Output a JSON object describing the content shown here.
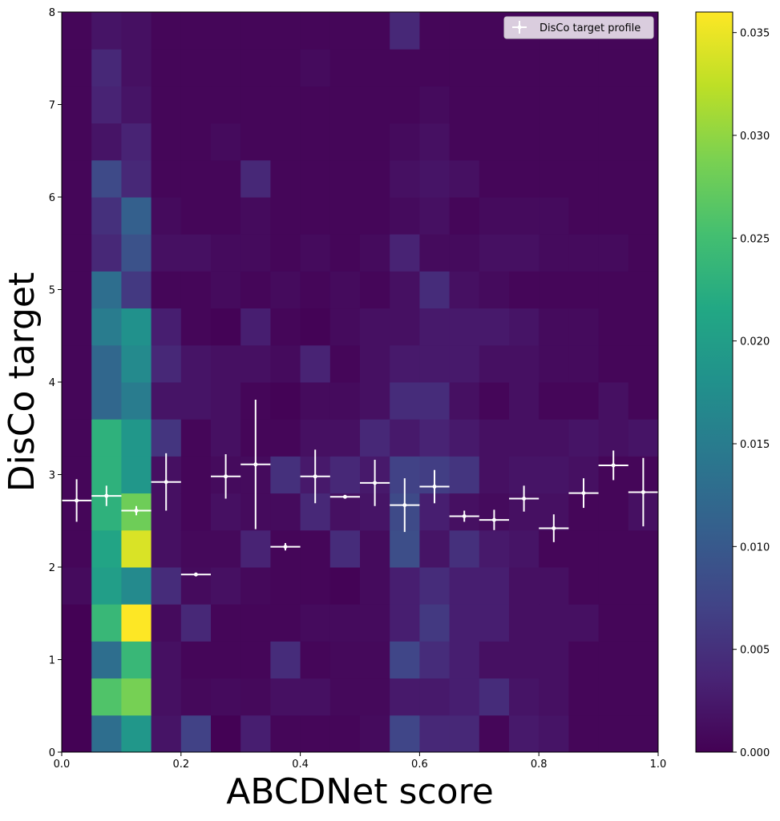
{
  "chart_data": {
    "type": "heatmap",
    "title": "",
    "xlabel": "ABCDNet score",
    "ylabel": "DisCo target",
    "xlim": [
      0,
      1
    ],
    "ylim": [
      0,
      8
    ],
    "x_bins": [
      0.0,
      0.05,
      0.1,
      0.15,
      0.2,
      0.25,
      0.3,
      0.35,
      0.4,
      0.45,
      0.5,
      0.55,
      0.6,
      0.65,
      0.7,
      0.75,
      0.8,
      0.85,
      0.9,
      0.95,
      1.0
    ],
    "y_bins": [
      0.0,
      0.4,
      0.8,
      1.2,
      1.6,
      2.0,
      2.4,
      2.8,
      3.2,
      3.6,
      4.0,
      4.4,
      4.8,
      5.2,
      5.6,
      6.0,
      6.4,
      6.8,
      7.2,
      7.6,
      8.0
    ],
    "x_ticks": [
      "0.0",
      "0.2",
      "0.4",
      "0.6",
      "0.8",
      "1.0"
    ],
    "y_ticks": [
      "0",
      "1",
      "2",
      "3",
      "4",
      "5",
      "6",
      "7",
      "8"
    ],
    "colorbar": {
      "min": 0.0,
      "max": 0.036,
      "ticks": [
        "0.000",
        "0.005",
        "0.010",
        "0.015",
        "0.020",
        "0.025",
        "0.030",
        "0.035"
      ],
      "colormap": "viridis"
    },
    "legend": {
      "label": "DisCo target profile",
      "location": "top-right",
      "marker_color": "#ffffff"
    },
    "values": [
      [
        0.0001,
        0.013,
        0.019,
        0.002,
        0.007,
        0.0001,
        0.003,
        0.0005,
        0.0005,
        0.0005,
        0.001,
        0.0075,
        0.004,
        0.004,
        0.0005,
        0.0025,
        0.002,
        0.0005,
        0.0005,
        0.0005
      ],
      [
        0.0001,
        0.026,
        0.0285,
        0.0015,
        0.0008,
        0.001,
        0.0008,
        0.0015,
        0.0015,
        0.0008,
        0.0008,
        0.0025,
        0.0025,
        0.003,
        0.0045,
        0.002,
        0.0015,
        0.0005,
        0.0005,
        0.0005
      ],
      [
        0.0001,
        0.013,
        0.024,
        0.0015,
        0.0005,
        0.0005,
        0.0005,
        0.0045,
        0.0005,
        0.0008,
        0.0008,
        0.0075,
        0.0045,
        0.003,
        0.0015,
        0.0015,
        0.0015,
        0.0005,
        0.0005,
        0.0005
      ],
      [
        0.0001,
        0.024,
        0.036,
        0.001,
        0.004,
        0.0005,
        0.0005,
        0.0005,
        0.001,
        0.001,
        0.001,
        0.003,
        0.006,
        0.003,
        0.003,
        0.0015,
        0.0015,
        0.0015,
        0.0005,
        0.0005
      ],
      [
        0.001,
        0.02,
        0.017,
        0.0045,
        0.001,
        0.0015,
        0.0008,
        0.0005,
        0.0005,
        0.0002,
        0.001,
        0.003,
        0.0045,
        0.003,
        0.003,
        0.0015,
        0.0015,
        0.0005,
        0.0005,
        0.0005
      ],
      [
        0.0005,
        0.021,
        0.034,
        0.0015,
        0.0008,
        0.0008,
        0.0035,
        0.0005,
        0.0005,
        0.0045,
        0.001,
        0.0085,
        0.002,
        0.005,
        0.0025,
        0.002,
        0.0005,
        0.0005,
        0.0005,
        0.0005
      ],
      [
        0.0005,
        0.023,
        0.028,
        0.0015,
        0.0005,
        0.0015,
        0.001,
        0.001,
        0.004,
        0.0015,
        0.002,
        0.008,
        0.003,
        0.0015,
        0.001,
        0.0015,
        0.0015,
        0.0005,
        0.0005,
        0.0015
      ],
      [
        0.0005,
        0.023,
        0.019,
        0.0015,
        0.0005,
        0.001,
        0.001,
        0.005,
        0.0025,
        0.004,
        0.0025,
        0.007,
        0.0065,
        0.0055,
        0.0015,
        0.002,
        0.002,
        0.0015,
        0.0005,
        0.0005
      ],
      [
        0.0005,
        0.023,
        0.019,
        0.0055,
        0.0005,
        0.0015,
        0.0005,
        0.0005,
        0.0015,
        0.0015,
        0.004,
        0.0025,
        0.0035,
        0.0025,
        0.0015,
        0.0015,
        0.0015,
        0.002,
        0.0015,
        0.002
      ],
      [
        0.0005,
        0.012,
        0.015,
        0.002,
        0.002,
        0.0015,
        0.0005,
        0.0002,
        0.001,
        0.001,
        0.0015,
        0.0045,
        0.0045,
        0.0015,
        0.0005,
        0.0015,
        0.0005,
        0.0005,
        0.0015,
        0.0005
      ],
      [
        0.0005,
        0.012,
        0.017,
        0.004,
        0.002,
        0.0015,
        0.0015,
        0.001,
        0.0035,
        0.0005,
        0.0015,
        0.0025,
        0.0025,
        0.0025,
        0.0015,
        0.0015,
        0.001,
        0.001,
        0.0005,
        0.0005
      ],
      [
        0.0005,
        0.015,
        0.018,
        0.003,
        0.0005,
        0.0002,
        0.003,
        0.0005,
        0.0002,
        0.001,
        0.0015,
        0.0015,
        0.0025,
        0.0025,
        0.0025,
        0.002,
        0.001,
        0.001,
        0.0005,
        0.0005
      ],
      [
        0.0005,
        0.013,
        0.006,
        0.0005,
        0.0005,
        0.001,
        0.0005,
        0.001,
        0.0005,
        0.001,
        0.0005,
        0.0015,
        0.0045,
        0.0015,
        0.001,
        0.0005,
        0.0005,
        0.0005,
        0.0005,
        0.0005
      ],
      [
        0.0005,
        0.004,
        0.009,
        0.0015,
        0.0015,
        0.001,
        0.001,
        0.0005,
        0.001,
        0.0005,
        0.001,
        0.0035,
        0.001,
        0.001,
        0.0015,
        0.0015,
        0.001,
        0.001,
        0.001,
        0.0005
      ],
      [
        0.0005,
        0.005,
        0.011,
        0.001,
        0.0005,
        0.0005,
        0.001,
        0.0005,
        0.0005,
        0.0005,
        0.0005,
        0.001,
        0.0015,
        0.0005,
        0.001,
        0.001,
        0.001,
        0.0005,
        0.0005,
        0.0005
      ],
      [
        0.0005,
        0.008,
        0.004,
        0.0005,
        0.0005,
        0.0005,
        0.004,
        0.0005,
        0.0005,
        0.0005,
        0.0005,
        0.0015,
        0.002,
        0.0015,
        0.0005,
        0.0005,
        0.0005,
        0.0005,
        0.0005,
        0.0005
      ],
      [
        0.0005,
        0.002,
        0.0035,
        0.0005,
        0.0005,
        0.001,
        0.0005,
        0.0005,
        0.0005,
        0.0005,
        0.0005,
        0.001,
        0.0015,
        0.0005,
        0.0005,
        0.0005,
        0.0005,
        0.0005,
        0.0005,
        0.0005
      ],
      [
        0.0005,
        0.0035,
        0.002,
        0.0005,
        0.0005,
        0.0005,
        0.0005,
        0.0005,
        0.0005,
        0.0005,
        0.0005,
        0.0005,
        0.001,
        0.0005,
        0.0005,
        0.0005,
        0.0005,
        0.0005,
        0.0005,
        0.0005
      ],
      [
        0.0005,
        0.004,
        0.0015,
        0.0005,
        0.0005,
        0.0005,
        0.0005,
        0.0005,
        0.001,
        0.0005,
        0.0005,
        0.0005,
        0.0005,
        0.0005,
        0.0005,
        0.0005,
        0.0005,
        0.0005,
        0.0005,
        0.0005
      ],
      [
        0.0005,
        0.002,
        0.0015,
        0.0005,
        0.0005,
        0.0005,
        0.0005,
        0.0005,
        0.0005,
        0.0005,
        0.0005,
        0.004,
        0.0005,
        0.0005,
        0.0005,
        0.0005,
        0.0005,
        0.0005,
        0.0005,
        0.0005
      ]
    ],
    "profile": {
      "name": "DisCo target profile",
      "x": [
        0.025,
        0.075,
        0.125,
        0.175,
        0.225,
        0.275,
        0.325,
        0.375,
        0.425,
        0.475,
        0.525,
        0.575,
        0.625,
        0.675,
        0.725,
        0.775,
        0.825,
        0.875,
        0.925,
        0.975
      ],
      "x_err": 0.025,
      "y": [
        2.72,
        2.77,
        2.61,
        2.92,
        1.92,
        2.98,
        3.11,
        2.22,
        2.98,
        2.76,
        2.91,
        2.67,
        2.87,
        2.55,
        2.51,
        2.74,
        2.42,
        2.8,
        3.1,
        2.81
      ],
      "y_err": [
        0.23,
        0.11,
        0.05,
        0.31,
        0.0,
        0.24,
        0.7,
        0.04,
        0.29,
        0.0,
        0.25,
        0.29,
        0.18,
        0.06,
        0.11,
        0.14,
        0.15,
        0.16,
        0.16,
        0.37
      ]
    }
  }
}
